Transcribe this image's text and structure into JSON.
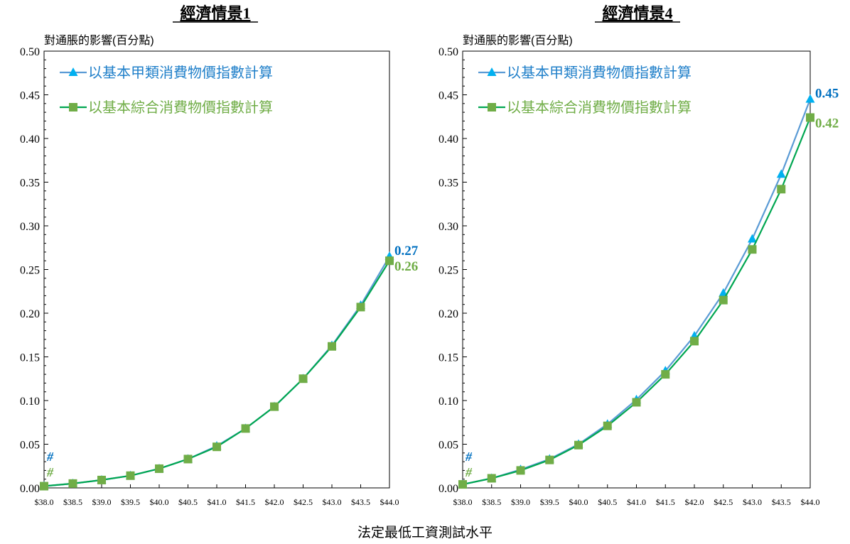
{
  "chart_data": [
    {
      "type": "line",
      "title": "經濟情景1",
      "ylabel": "對通脹的影響(百分點)",
      "ylim": [
        0,
        0.5
      ],
      "yticks": [
        "0.00",
        "0.05",
        "0.10",
        "0.15",
        "0.20",
        "0.25",
        "0.30",
        "0.35",
        "0.40",
        "0.45",
        "0.50"
      ],
      "categories": [
        "$38.0",
        "$38.5",
        "$39.0",
        "$39.5",
        "$40.0",
        "$40.5",
        "$41.0",
        "$41.5",
        "$42.0",
        "$42.5",
        "$43.0",
        "$43.5",
        "$44.0"
      ],
      "series": [
        {
          "name": "以基本甲類消費物價指數計算",
          "marker": "triangle",
          "values": [
            0.002,
            0.005,
            0.009,
            0.014,
            0.022,
            0.033,
            0.048,
            0.068,
            0.093,
            0.125,
            0.163,
            0.209,
            0.265
          ],
          "end_label": "0.27",
          "start_label": "#"
        },
        {
          "name": "以基本綜合消費物價指數計算",
          "marker": "square",
          "values": [
            0.002,
            0.005,
            0.009,
            0.014,
            0.022,
            0.033,
            0.047,
            0.068,
            0.093,
            0.125,
            0.162,
            0.207,
            0.26
          ],
          "end_label": "0.26",
          "start_label": "#"
        }
      ],
      "legend_position": "top-left",
      "grid": false
    },
    {
      "type": "line",
      "title": "經濟情景4",
      "ylabel": "對通脹的影響(百分點)",
      "ylim": [
        0,
        0.5
      ],
      "yticks": [
        "0.00",
        "0.05",
        "0.10",
        "0.15",
        "0.20",
        "0.25",
        "0.30",
        "0.35",
        "0.40",
        "0.45",
        "0.50"
      ],
      "categories": [
        "$38.0",
        "$38.5",
        "$39.0",
        "$39.5",
        "$40.0",
        "$40.5",
        "$41.0",
        "$41.5",
        "$42.0",
        "$42.5",
        "$43.0",
        "$43.5",
        "$44.0"
      ],
      "series": [
        {
          "name": "以基本甲類消費物價指數計算",
          "marker": "triangle",
          "values": [
            0.004,
            0.011,
            0.021,
            0.033,
            0.05,
            0.073,
            0.101,
            0.134,
            0.174,
            0.223,
            0.285,
            0.359,
            0.445
          ],
          "end_label": "0.45",
          "start_label": "#"
        },
        {
          "name": "以基本綜合消費物價指數計算",
          "marker": "square",
          "values": [
            0.004,
            0.011,
            0.02,
            0.032,
            0.049,
            0.071,
            0.098,
            0.13,
            0.168,
            0.215,
            0.273,
            0.342,
            0.424
          ],
          "end_label": "0.42",
          "start_label": "#"
        }
      ],
      "legend_position": "top-left",
      "grid": false
    }
  ],
  "xlabel": "法定最低工資測試水平",
  "colors": {
    "series1_line": "#5b9bd5",
    "series1_marker": "#00b0f0",
    "series1_text": "#1f7fc9",
    "series1_endlabel": "#0070c0",
    "series2_line": "#00a651",
    "series2_marker": "#70ad47",
    "series2_text": "#70ad47",
    "series2_endlabel": "#70ad47"
  }
}
